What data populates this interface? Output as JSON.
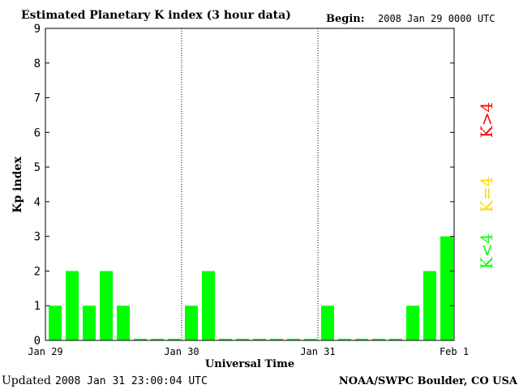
{
  "chart_data": {
    "type": "bar",
    "title": "Estimated Planetary K index (3 hour data)",
    "begin_label": "Begin:",
    "begin_value": "2008 Jan 29 0000 UTC",
    "ylabel": "Kp index",
    "xlabel": "Universal Time",
    "ylim": [
      0,
      9
    ],
    "y_ticks": [
      "0",
      "1",
      "2",
      "3",
      "4",
      "5",
      "6",
      "7",
      "8",
      "9"
    ],
    "x_ticks": [
      "Jan 29",
      "Jan 30",
      "Jan 31",
      "Feb 1"
    ],
    "day_dividers": [
      "Jan 30",
      "Jan 31"
    ],
    "bins_per_day": 8,
    "days": 3,
    "values": [
      1,
      2,
      1,
      2,
      1,
      0,
      0,
      0,
      1,
      2,
      0,
      0,
      0,
      0,
      0,
      0,
      1,
      0,
      0,
      0,
      0,
      1,
      2,
      3
    ],
    "bar_color": "#00ff00",
    "legend": [
      {
        "label": "K<4",
        "color": "#00ff00"
      },
      {
        "label": "K=4",
        "color": "#ffd700"
      },
      {
        "label": "K>4",
        "color": "#ff0000"
      }
    ],
    "footer_left_label": "Updated",
    "footer_left_value": "2008 Jan 31 23:00:04 UTC",
    "footer_right": "NOAA/SWPC Boulder, CO USA"
  }
}
